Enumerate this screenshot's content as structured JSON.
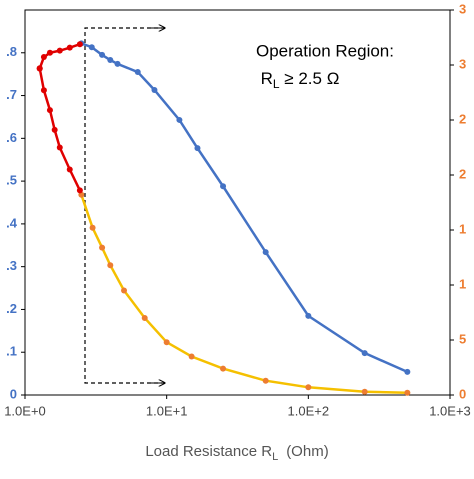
{
  "chart_data": {
    "type": "line",
    "xlabel": {
      "main": "Load Resistance R",
      "sub": "L",
      "tail": "(Ohm)"
    },
    "annotation": {
      "line1": "Operation Region:",
      "main": "R",
      "sub": "L",
      "tail": " ≥ 2.5 Ω"
    },
    "xscale": "log",
    "xlim": [
      1,
      1000
    ],
    "xticks": [
      {
        "value": 1,
        "label": "1.0E+0"
      },
      {
        "value": 10,
        "label": "1.0E+1"
      },
      {
        "value": 100,
        "label": "1.0E+2"
      },
      {
        "value": 1000,
        "label": "1.0E+3"
      }
    ],
    "ylim": [
      0,
      0.9
    ],
    "yticks": [
      0,
      {
        "value": 0.1,
        "label": ".1"
      },
      {
        "value": 0.2,
        "label": ".2"
      },
      {
        "value": 0.3,
        "label": ".3"
      },
      {
        "value": 0.4,
        "label": ".4"
      },
      {
        "value": 0.5,
        "label": ".5"
      },
      {
        "value": 0.6,
        "label": ".6"
      },
      {
        "value": 0.7,
        "label": ".7"
      },
      {
        "value": 0.8,
        "label": ".8"
      }
    ],
    "y2lim": [
      0,
      35
    ],
    "y2ticks": [
      0,
      5,
      {
        "value": 10,
        "label": "1"
      },
      {
        "value": 15,
        "label": "1"
      },
      {
        "value": 20,
        "label": "2"
      },
      {
        "value": 25,
        "label": "2"
      },
      {
        "value": 30,
        "label": "3"
      },
      {
        "value": 35,
        "label": "3"
      }
    ],
    "ycolor": "#4472c4",
    "y2color": "#ed7d31",
    "series": [
      {
        "color": "#4472c4",
        "marker_color": "#4472c4",
        "axis": "y",
        "x": [
          2.5,
          2.96,
          3.5,
          4,
          4.5,
          6.25,
          8.2,
          12.3,
          16.5,
          25,
          50,
          100,
          250,
          500
        ],
        "values": [
          0.822,
          0.813,
          0.795,
          0.783,
          0.774,
          0.755,
          0.713,
          0.643,
          0.577,
          0.488,
          0.334,
          0.185,
          0.098,
          0.054
        ]
      },
      {
        "color": "#e00000",
        "marker_color": "#e00000",
        "axis": "y",
        "x": [
          1.27,
          1.36,
          1.5,
          1.76,
          2.07,
          2.44
        ],
        "values": [
          0.763,
          0.79,
          0.8,
          0.805,
          0.812,
          0.82
        ]
      },
      {
        "color": "#f5c000",
        "marker_color": "#ed7d31",
        "axis": "y2",
        "x": [
          2.5,
          3,
          3.5,
          4,
          5,
          7,
          10,
          15,
          25,
          50,
          100,
          250,
          500
        ],
        "values": [
          18.2,
          15.2,
          13.4,
          11.8,
          9.5,
          7,
          4.8,
          3.5,
          2.4,
          1.3,
          0.7,
          0.3,
          0.2
        ]
      },
      {
        "color": "#e00000",
        "marker_color": "#e00000",
        "axis": "y2",
        "x": [
          1.27,
          1.36,
          1.5,
          1.62,
          1.76,
          2.07,
          2.44
        ],
        "values": [
          29.7,
          27.7,
          25.9,
          24.1,
          22.5,
          20.5,
          18.6
        ]
      }
    ]
  }
}
